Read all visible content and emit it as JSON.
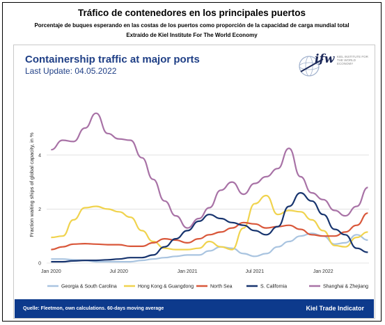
{
  "header": {
    "title": "Tráfico de contenedores en los principales puertos",
    "subtitle": "Porcentaje de buques esperando en las costas de los puertos como proporción de la capacidad de carga mundial total",
    "source_line": "Extraído de Kiel Institute For The World Economy"
  },
  "logo": {
    "mark": "ifw",
    "small_text": "KIEL INSTITUTE FOR THE WORLD ECONOMY"
  },
  "footer": {
    "source": "Quelle: Fleetmon, own calculations. 60-days moving average",
    "brand": "Kiel Trade Indicator"
  },
  "chart_data": {
    "type": "line",
    "title": "Containership traffic at major ports",
    "subtitle": "Last Update: 04.05.2022",
    "ylabel": "Fraction waiting ships of global capacity, in %",
    "xlabel": "",
    "xlim": [
      "2019-12-20",
      "2022-05-04"
    ],
    "ylim": [
      0,
      5.8
    ],
    "y_ticks": [
      0,
      2,
      4
    ],
    "x_ticks": [
      {
        "label": "Jan 2020",
        "date": "2020-01-01"
      },
      {
        "label": "Jul 2020",
        "date": "2020-07-01"
      },
      {
        "label": "Jan 2021",
        "date": "2021-01-01"
      },
      {
        "label": "Jul 2021",
        "date": "2021-07-01"
      },
      {
        "label": "Jan 2022",
        "date": "2022-01-01"
      }
    ],
    "grid": true,
    "legend_position": "bottom",
    "series": [
      {
        "name": "Georgia & South Carolina",
        "color": "#a9c4e0",
        "points": [
          [
            "2020-01-01",
            0.15
          ],
          [
            "2020-02-01",
            0.15
          ],
          [
            "2020-03-01",
            0.12
          ],
          [
            "2020-04-01",
            0.1
          ],
          [
            "2020-05-01",
            0.05
          ],
          [
            "2020-06-01",
            0.05
          ],
          [
            "2020-07-01",
            0.05
          ],
          [
            "2020-08-01",
            0.05
          ],
          [
            "2020-09-01",
            0.1
          ],
          [
            "2020-10-01",
            0.15
          ],
          [
            "2020-11-01",
            0.2
          ],
          [
            "2020-12-01",
            0.25
          ],
          [
            "2021-01-01",
            0.3
          ],
          [
            "2021-02-01",
            0.3
          ],
          [
            "2021-03-01",
            0.45
          ],
          [
            "2021-04-01",
            0.6
          ],
          [
            "2021-05-01",
            0.55
          ],
          [
            "2021-06-01",
            0.35
          ],
          [
            "2021-07-01",
            0.25
          ],
          [
            "2021-08-01",
            0.35
          ],
          [
            "2021-09-01",
            0.6
          ],
          [
            "2021-10-01",
            0.8
          ],
          [
            "2021-11-01",
            1.0
          ],
          [
            "2021-12-01",
            1.1
          ],
          [
            "2022-01-01",
            1.0
          ],
          [
            "2022-02-01",
            0.7
          ],
          [
            "2022-03-01",
            0.75
          ],
          [
            "2022-04-01",
            1.05
          ],
          [
            "2022-05-01",
            0.85
          ]
        ]
      },
      {
        "name": "Hong Kong & Guangdong",
        "color": "#f0d34e",
        "points": [
          [
            "2020-01-01",
            0.95
          ],
          [
            "2020-02-01",
            1.0
          ],
          [
            "2020-03-01",
            1.6
          ],
          [
            "2020-04-01",
            2.05
          ],
          [
            "2020-05-01",
            2.1
          ],
          [
            "2020-06-01",
            2.0
          ],
          [
            "2020-07-01",
            1.9
          ],
          [
            "2020-08-01",
            1.7
          ],
          [
            "2020-09-01",
            1.2
          ],
          [
            "2020-10-01",
            0.8
          ],
          [
            "2020-11-01",
            0.55
          ],
          [
            "2020-12-01",
            0.5
          ],
          [
            "2021-01-01",
            0.5
          ],
          [
            "2021-02-01",
            0.55
          ],
          [
            "2021-03-01",
            0.8
          ],
          [
            "2021-04-01",
            0.6
          ],
          [
            "2021-05-01",
            0.5
          ],
          [
            "2021-06-01",
            1.3
          ],
          [
            "2021-07-01",
            2.2
          ],
          [
            "2021-08-01",
            2.5
          ],
          [
            "2021-09-01",
            1.8
          ],
          [
            "2021-10-01",
            1.95
          ],
          [
            "2021-11-01",
            1.9
          ],
          [
            "2021-12-01",
            1.6
          ],
          [
            "2022-01-01",
            1.2
          ],
          [
            "2022-02-01",
            0.65
          ],
          [
            "2022-03-01",
            0.6
          ],
          [
            "2022-04-01",
            0.95
          ],
          [
            "2022-05-01",
            1.15
          ]
        ]
      },
      {
        "name": "North Sea",
        "color": "#d9573a",
        "points": [
          [
            "2020-01-01",
            0.5
          ],
          [
            "2020-02-01",
            0.6
          ],
          [
            "2020-03-01",
            0.7
          ],
          [
            "2020-04-01",
            0.72
          ],
          [
            "2020-05-01",
            0.7
          ],
          [
            "2020-06-01",
            0.68
          ],
          [
            "2020-07-01",
            0.68
          ],
          [
            "2020-08-01",
            0.62
          ],
          [
            "2020-09-01",
            0.62
          ],
          [
            "2020-10-01",
            0.75
          ],
          [
            "2020-11-01",
            0.9
          ],
          [
            "2020-12-01",
            0.85
          ],
          [
            "2021-01-01",
            0.75
          ],
          [
            "2021-02-01",
            0.9
          ],
          [
            "2021-03-01",
            1.05
          ],
          [
            "2021-04-01",
            1.15
          ],
          [
            "2021-05-01",
            1.3
          ],
          [
            "2021-06-01",
            1.5
          ],
          [
            "2021-07-01",
            1.45
          ],
          [
            "2021-08-01",
            1.3
          ],
          [
            "2021-09-01",
            1.35
          ],
          [
            "2021-10-01",
            1.4
          ],
          [
            "2021-11-01",
            1.25
          ],
          [
            "2021-12-01",
            1.05
          ],
          [
            "2022-01-01",
            1.0
          ],
          [
            "2022-02-01",
            1.0
          ],
          [
            "2022-03-01",
            1.15
          ],
          [
            "2022-04-01",
            1.4
          ],
          [
            "2022-05-01",
            1.85
          ]
        ]
      },
      {
        "name": "S. California",
        "color": "#17346e",
        "points": [
          [
            "2020-01-01",
            0.05
          ],
          [
            "2020-02-01",
            0.05
          ],
          [
            "2020-03-01",
            0.08
          ],
          [
            "2020-04-01",
            0.1
          ],
          [
            "2020-05-01",
            0.1
          ],
          [
            "2020-06-01",
            0.12
          ],
          [
            "2020-07-01",
            0.15
          ],
          [
            "2020-08-01",
            0.2
          ],
          [
            "2020-09-01",
            0.2
          ],
          [
            "2020-10-01",
            0.3
          ],
          [
            "2020-11-01",
            0.6
          ],
          [
            "2020-12-01",
            0.9
          ],
          [
            "2021-01-01",
            1.2
          ],
          [
            "2021-02-01",
            1.55
          ],
          [
            "2021-03-01",
            1.8
          ],
          [
            "2021-04-01",
            1.65
          ],
          [
            "2021-05-01",
            1.5
          ],
          [
            "2021-06-01",
            1.4
          ],
          [
            "2021-07-01",
            1.2
          ],
          [
            "2021-08-01",
            1.05
          ],
          [
            "2021-09-01",
            1.35
          ],
          [
            "2021-10-01",
            2.1
          ],
          [
            "2021-11-01",
            2.6
          ],
          [
            "2021-12-01",
            2.3
          ],
          [
            "2022-01-01",
            1.8
          ],
          [
            "2022-02-01",
            1.25
          ],
          [
            "2022-03-01",
            1.05
          ],
          [
            "2022-04-01",
            0.55
          ],
          [
            "2022-05-01",
            0.4
          ]
        ]
      },
      {
        "name": "Shanghai & Zhejiang",
        "color": "#a872a6",
        "points": [
          [
            "2020-01-01",
            4.2
          ],
          [
            "2020-02-01",
            4.55
          ],
          [
            "2020-03-01",
            4.5
          ],
          [
            "2020-04-01",
            5.0
          ],
          [
            "2020-05-01",
            5.55
          ],
          [
            "2020-06-01",
            4.8
          ],
          [
            "2020-07-01",
            4.6
          ],
          [
            "2020-08-01",
            4.55
          ],
          [
            "2020-09-01",
            3.9
          ],
          [
            "2020-10-01",
            3.1
          ],
          [
            "2020-11-01",
            2.3
          ],
          [
            "2020-12-01",
            1.75
          ],
          [
            "2021-01-01",
            1.3
          ],
          [
            "2021-02-01",
            1.65
          ],
          [
            "2021-03-01",
            2.05
          ],
          [
            "2021-04-01",
            2.7
          ],
          [
            "2021-05-01",
            3.0
          ],
          [
            "2021-06-01",
            2.55
          ],
          [
            "2021-07-01",
            2.95
          ],
          [
            "2021-08-01",
            3.2
          ],
          [
            "2021-09-01",
            3.5
          ],
          [
            "2021-10-01",
            4.25
          ],
          [
            "2021-11-01",
            3.2
          ],
          [
            "2021-12-01",
            2.6
          ],
          [
            "2022-01-01",
            2.35
          ],
          [
            "2022-02-01",
            1.95
          ],
          [
            "2022-03-01",
            1.75
          ],
          [
            "2022-04-01",
            2.1
          ],
          [
            "2022-05-01",
            2.8
          ]
        ]
      }
    ]
  }
}
